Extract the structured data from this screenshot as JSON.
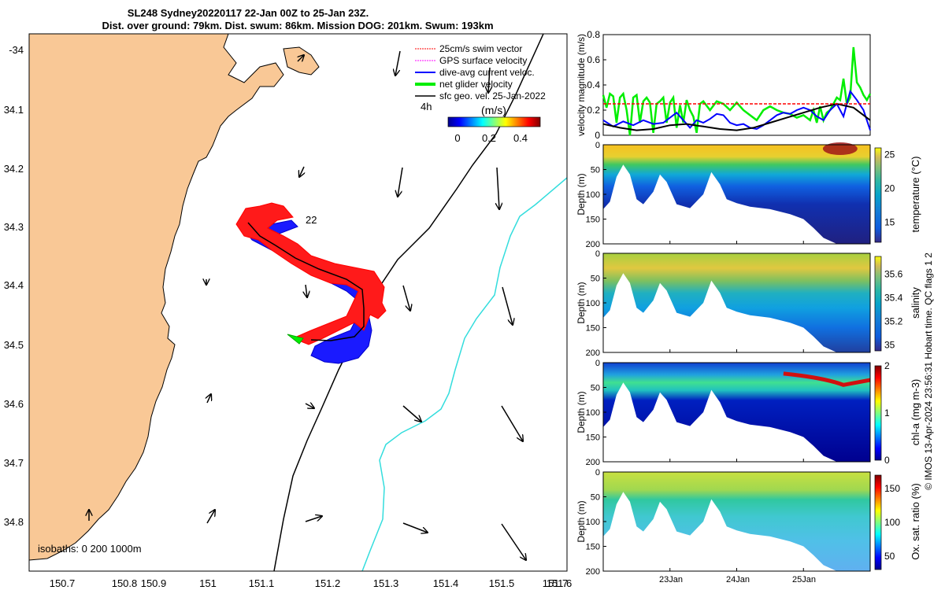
{
  "title": {
    "line1": "SL248 Sydney20220117 22-Jan 00Z to 25-Jan 23Z.",
    "line2": "Dist. over ground: 79km. Dist. swum: 86km. Mission DOG: 201km. Swum: 193km"
  },
  "map": {
    "x_ticks": [
      "150.7",
      "150.8",
      "150.9",
      "151",
      "151.1",
      "151.2",
      "151.3",
      "151.4",
      "151.5",
      "151.6",
      "151.7"
    ],
    "y_ticks": [
      "-34",
      "34.1",
      "34.2",
      "34.3",
      "34.4",
      "34.5",
      "34.6",
      "34.7",
      "34.8"
    ],
    "legend": [
      {
        "label": "25cm/s swim vector",
        "color": "#ff0000"
      },
      {
        "label": "GPS surface velocity",
        "color": "#ff00ff"
      },
      {
        "label": "dive-avg current veloc.",
        "color": "#0000ff"
      },
      {
        "label": "net glider velocity",
        "color": "#00ee00"
      },
      {
        "label": "sfc geo. vel. 25-Jan-2022",
        "color": "#000000"
      }
    ],
    "time_marker": "4h",
    "colorbar": {
      "label": "(m/s)",
      "ticks": [
        "0",
        "0.2",
        "0.4"
      ]
    },
    "day_label": "22",
    "isobaths_label": "isobaths: 0   200  1000m",
    "land_color": "#f9c896",
    "isobath_200_color": "#000000",
    "isobath_1000_color": "#33dddd"
  },
  "chart_data": [
    {
      "type": "line",
      "title": "",
      "ylabel": "velocity magnitude (m/s)",
      "ylim": [
        0,
        0.8
      ],
      "y_ticks": [
        "0",
        "0.2",
        "0.4",
        "0.6",
        "0.8"
      ],
      "x_range_days": [
        22.0,
        26.0
      ],
      "series": [
        {
          "name": "net glider velocity",
          "color": "#00ee00",
          "x": [
            22.0,
            22.05,
            22.1,
            22.15,
            22.2,
            22.25,
            22.3,
            22.35,
            22.4,
            22.45,
            22.5,
            22.55,
            22.6,
            22.65,
            22.7,
            22.75,
            22.8,
            22.85,
            22.9,
            22.95,
            23.0,
            23.05,
            23.1,
            23.15,
            23.2,
            23.25,
            23.3,
            23.35,
            23.4,
            23.45,
            23.5,
            23.6,
            23.7,
            23.8,
            23.9,
            24.0,
            24.1,
            24.2,
            24.3,
            24.4,
            24.5,
            24.6,
            24.7,
            24.8,
            24.9,
            25.0,
            25.1,
            25.15,
            25.2,
            25.25,
            25.3,
            25.35,
            25.4,
            25.45,
            25.5,
            25.55,
            25.6,
            25.65,
            25.7,
            25.75,
            25.8,
            25.85,
            25.9,
            25.95,
            26.0
          ],
          "y": [
            0.32,
            0.22,
            0.33,
            0.31,
            0.1,
            0.3,
            0.33,
            0.2,
            0.0,
            0.3,
            0.32,
            0.1,
            0.27,
            0.3,
            0.26,
            0.02,
            0.25,
            0.27,
            0.3,
            0.1,
            0.26,
            0.3,
            0.06,
            0.24,
            0.1,
            0.28,
            0.2,
            0.15,
            0.02,
            0.25,
            0.27,
            0.2,
            0.27,
            0.25,
            0.2,
            0.26,
            0.2,
            0.16,
            0.12,
            0.2,
            0.23,
            0.2,
            0.18,
            0.17,
            0.14,
            0.16,
            0.12,
            0.2,
            0.1,
            0.23,
            0.12,
            0.18,
            0.2,
            0.25,
            0.3,
            0.28,
            0.45,
            0.25,
            0.3,
            0.7,
            0.42,
            0.38,
            0.32,
            0.28,
            0.33
          ]
        },
        {
          "name": "dive-avg current veloc.",
          "color": "#0000ff",
          "x": [
            22.0,
            22.15,
            22.3,
            22.45,
            22.6,
            22.75,
            22.9,
            23.0,
            23.1,
            23.2,
            23.3,
            23.4,
            23.5,
            23.6,
            23.7,
            23.8,
            23.9,
            24.0,
            24.1,
            24.2,
            24.3,
            24.4,
            24.5,
            24.6,
            24.7,
            24.8,
            24.9,
            25.0,
            25.1,
            25.2,
            25.3,
            25.4,
            25.5,
            25.6,
            25.7,
            25.8,
            25.9,
            26.0
          ],
          "y": [
            0.12,
            0.07,
            0.11,
            0.08,
            0.12,
            0.09,
            0.1,
            0.14,
            0.18,
            0.12,
            0.06,
            0.12,
            0.1,
            0.13,
            0.17,
            0.16,
            0.1,
            0.08,
            0.09,
            0.06,
            0.05,
            0.08,
            0.12,
            0.16,
            0.18,
            0.17,
            0.2,
            0.22,
            0.2,
            0.15,
            0.12,
            0.2,
            0.25,
            0.15,
            0.35,
            0.28,
            0.2,
            0.04
          ]
        },
        {
          "name": "sfc geo. vel.",
          "color": "#000000",
          "x": [
            22.0,
            22.25,
            22.5,
            22.75,
            23.0,
            23.25,
            23.5,
            23.75,
            24.0,
            24.25,
            24.5,
            24.75,
            25.0,
            25.25,
            25.5,
            25.75,
            26.0
          ],
          "y": [
            0.09,
            0.06,
            0.04,
            0.05,
            0.08,
            0.09,
            0.07,
            0.05,
            0.04,
            0.06,
            0.1,
            0.14,
            0.18,
            0.22,
            0.25,
            0.22,
            0.12
          ]
        },
        {
          "name": "25cm/s reference",
          "color": "#ff0000",
          "x": [
            22.0,
            26.0
          ],
          "y": [
            0.25,
            0.25
          ]
        }
      ]
    },
    {
      "type": "heatmap",
      "ylabel": "Depth (m)",
      "clabel": "temperature (°C)",
      "ylim": [
        200,
        0
      ],
      "y_ticks": [
        "0",
        "50",
        "100",
        "150",
        "200"
      ],
      "c_ticks": [
        "25",
        "20",
        "15"
      ],
      "crange": [
        12,
        26
      ]
    },
    {
      "type": "heatmap",
      "ylabel": "Depth (m)",
      "clabel": "salinity",
      "ylim": [
        200,
        0
      ],
      "y_ticks": [
        "0",
        "50",
        "100",
        "150",
        "200"
      ],
      "c_ticks": [
        "35.6",
        "35.4",
        "35.2",
        "35"
      ],
      "crange": [
        34.95,
        35.75
      ]
    },
    {
      "type": "heatmap",
      "ylabel": "Depth (m)",
      "clabel": "chl-a (mg m-3)",
      "ylim": [
        200,
        0
      ],
      "y_ticks": [
        "0",
        "50",
        "100",
        "150",
        "200"
      ],
      "c_ticks": [
        "2",
        "1",
        "0"
      ],
      "crange": [
        0,
        2
      ]
    },
    {
      "type": "heatmap",
      "ylabel": "Depth (m)",
      "clabel": "Ox. sat. ratio (%)",
      "ylim": [
        200,
        0
      ],
      "y_ticks": [
        "0",
        "50",
        "100",
        "150",
        "200"
      ],
      "c_ticks": [
        "150",
        "100",
        "50"
      ],
      "crange": [
        30,
        170
      ],
      "x_ticks": [
        "23Jan",
        "24Jan",
        "25Jan"
      ]
    }
  ],
  "timestamp": "© IMOS 13-Apr-2024 23:56:31 Hobart time. QC flags 1  2"
}
